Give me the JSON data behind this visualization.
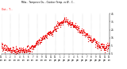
{
  "bg_color": "#ffffff",
  "temp_color": "#ff0000",
  "wind_chill_color": "#cc0000",
  "ylim": [
    -5,
    45
  ],
  "ytick_values": [
    -5,
    5,
    15,
    25,
    35,
    45
  ],
  "ytick_labels": [
    "-5",
    "5",
    "15",
    "25",
    "35",
    "45"
  ],
  "dot_size": 0.8,
  "grid_color": "#aaaaaa",
  "title_text": "Milw... Temper.re Ou... Outdoor Temp. vs W... C...",
  "legend_text": "Out... T..."
}
